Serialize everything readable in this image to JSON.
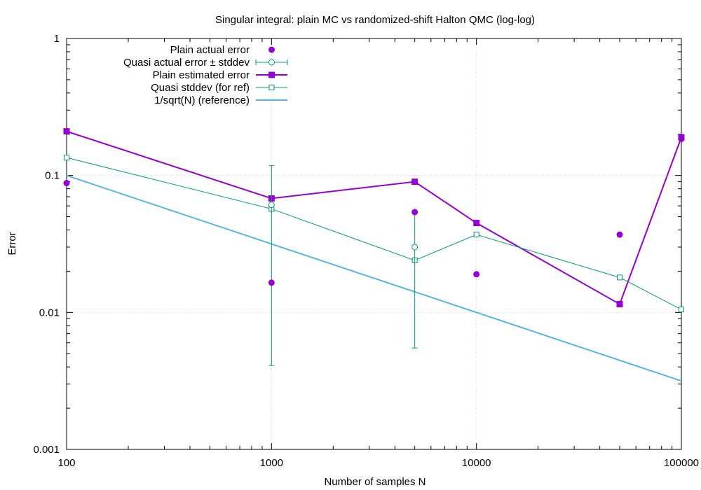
{
  "chart_data": {
    "type": "line",
    "title": "Singular integral: plain MC vs randomized-shift Halton QMC (log-log)",
    "xlabel": "Number of samples N",
    "ylabel": "Error",
    "xscale": "log",
    "yscale": "log",
    "xlim": [
      100,
      100000
    ],
    "ylim": [
      0.001,
      1
    ],
    "grid": true,
    "legend_position": "top-left",
    "x_ticks": [
      100,
      1000,
      10000,
      100000
    ],
    "x_tick_labels": [
      "100",
      "1000",
      "10000",
      "100000"
    ],
    "y_ticks": [
      0.001,
      0.01,
      0.1,
      1
    ],
    "y_tick_labels": [
      "0.001",
      "0.01",
      "0.1",
      "1"
    ],
    "series": [
      {
        "name": "Plain actual error",
        "style": "points",
        "marker": "filled-circle",
        "color": "#9400d3",
        "x": [
          100,
          1000,
          5000,
          10000,
          50000,
          100000
        ],
        "y": [
          0.088,
          0.0165,
          0.054,
          0.019,
          0.037,
          0.185
        ]
      },
      {
        "name": "Quasi actual error ± stddev",
        "style": "errorbars",
        "marker": "open-circle",
        "color": "#009e73",
        "x": [
          1000,
          5000
        ],
        "y": [
          0.061,
          0.03
        ],
        "yerr_low": [
          0.0041,
          0.0055
        ],
        "yerr_high": [
          0.118,
          0.054
        ]
      },
      {
        "name": "Plain estimated error",
        "style": "linespoints",
        "marker": "filled-square",
        "color": "#9400d3",
        "x": [
          100,
          1000,
          5000,
          10000,
          50000,
          100000
        ],
        "y": [
          0.21,
          0.068,
          0.09,
          0.045,
          0.0115,
          0.19
        ]
      },
      {
        "name": "Quasi stddev (for ref)",
        "style": "linespoints",
        "marker": "open-square",
        "color": "#009e73",
        "x": [
          100,
          1000,
          5000,
          10000,
          50000,
          100000
        ],
        "y": [
          0.135,
          0.057,
          0.024,
          0.037,
          0.018,
          0.0105
        ]
      },
      {
        "name": "1/sqrt(N) (reference)",
        "style": "line",
        "color": "#56b4e9",
        "x": [
          100,
          100000
        ],
        "y": [
          0.1,
          0.0031623
        ]
      }
    ]
  }
}
